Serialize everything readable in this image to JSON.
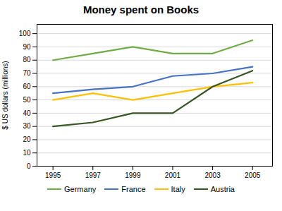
{
  "chart_data": {
    "type": "line",
    "title": "Money spent on Books",
    "ylabel": "$ US dollars (millions)",
    "x": [
      1995,
      1997,
      1999,
      2001,
      2003,
      2005
    ],
    "series": [
      {
        "name": "Germany",
        "color": "#70ad47",
        "values": [
          80,
          85,
          90,
          85,
          85,
          95
        ]
      },
      {
        "name": "France",
        "color": "#4472c4",
        "values": [
          55,
          58,
          60,
          68,
          70,
          75
        ]
      },
      {
        "name": "Italy",
        "color": "#ffc000",
        "values": [
          50,
          55,
          50,
          55,
          60,
          63
        ]
      },
      {
        "name": "Austria",
        "color": "#375623",
        "values": [
          30,
          33,
          40,
          40,
          60,
          72
        ]
      }
    ],
    "xlim": [
      1994.2,
      2006
    ],
    "xticks": [
      1995,
      1997,
      1999,
      2001,
      2003,
      2005
    ],
    "ylim": [
      0,
      107
    ],
    "yticks": [
      0,
      10,
      20,
      30,
      40,
      50,
      60,
      70,
      80,
      90,
      100
    ],
    "grid": "y",
    "legend": "bottom"
  }
}
